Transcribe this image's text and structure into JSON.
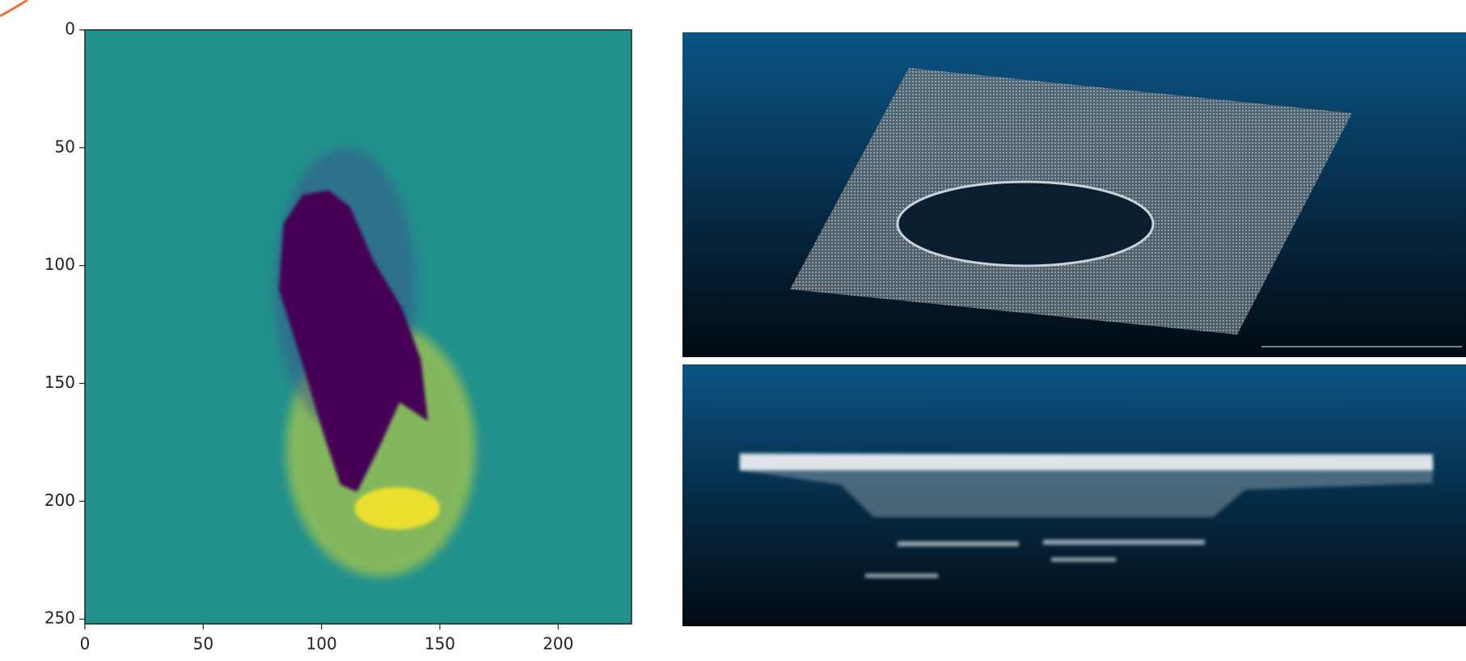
{
  "chart_data": {
    "type": "image",
    "xlim": [
      0,
      231
    ],
    "ylim": [
      0,
      252
    ],
    "y_inverted": true,
    "xticks": [
      0,
      50,
      100,
      150,
      200
    ],
    "yticks": [
      0,
      50,
      100,
      150,
      200,
      250
    ],
    "colormap": [
      "#440154",
      "#21918c",
      "#fde725"
    ]
  }
}
